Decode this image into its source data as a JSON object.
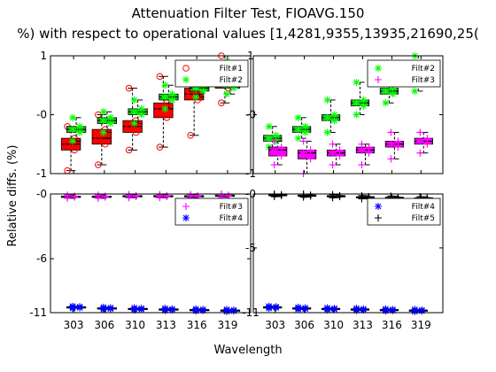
{
  "title_line1": "Attenuation Filter Test, FIOAVG.150",
  "title_line2": "%) with respect to operational values [1,4281,9355,13935,21690,25(",
  "ylabel": "Relative diffs. (%)",
  "xlabel": "Wavelength",
  "colors": {
    "filt1": "#ff0000",
    "filt2": "#00ff00",
    "filt3": "#ff00ff",
    "filt4": "#0000ff",
    "filt5": "#000000",
    "box_green": "#22c322"
  },
  "chart_data": [
    {
      "type": "box",
      "panel": "top-left",
      "categories": [
        "303",
        "306",
        "310",
        "313",
        "316",
        "319"
      ],
      "ylim": [
        -1,
        1
      ],
      "yticks": [
        "-1",
        "-0",
        "1"
      ],
      "legend": {
        "placement": "top-right",
        "entries": [
          "Filt#1",
          "Filt#2"
        ]
      },
      "series": [
        {
          "name": "Filt#1",
          "color": "#ff0000",
          "marker": "circle",
          "median": [
            -0.5,
            -0.4,
            -0.2,
            0.1,
            0.35,
            0.5
          ],
          "q1": [
            -0.6,
            -0.5,
            -0.3,
            -0.05,
            0.25,
            0.45
          ],
          "q3": [
            -0.4,
            -0.25,
            -0.1,
            0.2,
            0.45,
            0.55
          ],
          "low": [
            -0.95,
            -0.85,
            -0.6,
            -0.55,
            -0.35,
            0.2
          ],
          "high": [
            -0.2,
            0.0,
            0.45,
            0.65,
            0.85,
            1.0
          ]
        },
        {
          "name": "Filt#2",
          "color": "#00ff00",
          "marker": "star",
          "median": [
            -0.25,
            -0.1,
            0.05,
            0.3,
            0.45,
            0.5
          ],
          "q1": [
            -0.3,
            -0.15,
            0.0,
            0.25,
            0.4,
            0.45
          ],
          "q3": [
            -0.2,
            -0.05,
            0.1,
            0.35,
            0.5,
            0.55
          ],
          "low": [
            -0.45,
            -0.3,
            -0.15,
            0.1,
            0.3,
            0.35
          ],
          "high": [
            -0.05,
            0.05,
            0.25,
            0.5,
            0.7,
            0.9
          ]
        }
      ]
    },
    {
      "type": "box",
      "panel": "top-right",
      "categories": [
        "303",
        "306",
        "310",
        "313",
        "316",
        "319"
      ],
      "ylim": [
        -1,
        1
      ],
      "yticks": [
        "-1",
        "-0",
        "1"
      ],
      "legend": {
        "placement": "top-right",
        "entries": [
          "Filt#2",
          "Filt#3"
        ]
      },
      "series": [
        {
          "name": "Filt#2",
          "color": "#00ff00",
          "marker": "star",
          "median": [
            -0.4,
            -0.25,
            -0.05,
            0.2,
            0.4,
            0.7
          ],
          "q1": [
            -0.45,
            -0.3,
            -0.1,
            0.15,
            0.35,
            0.65
          ],
          "q3": [
            -0.35,
            -0.2,
            0.0,
            0.25,
            0.45,
            0.75
          ],
          "low": [
            -0.55,
            -0.4,
            -0.3,
            0.0,
            0.2,
            0.4
          ],
          "high": [
            -0.2,
            -0.05,
            0.25,
            0.55,
            0.8,
            1.0
          ]
        },
        {
          "name": "Filt#3",
          "color": "#ff00ff",
          "marker": "plus",
          "median": [
            -0.6,
            -0.65,
            -0.65,
            -0.6,
            -0.5,
            -0.45
          ],
          "q1": [
            -0.7,
            -0.75,
            -0.7,
            -0.65,
            -0.55,
            -0.5
          ],
          "q3": [
            -0.55,
            -0.6,
            -0.6,
            -0.55,
            -0.45,
            -0.4
          ],
          "low": [
            -0.85,
            -1.0,
            -0.85,
            -0.85,
            -0.75,
            -0.65
          ],
          "high": [
            -0.45,
            -0.45,
            -0.5,
            -0.5,
            -0.3,
            -0.3
          ]
        }
      ]
    },
    {
      "type": "box",
      "panel": "bottom-left",
      "categories": [
        "303",
        "306",
        "310",
        "313",
        "316",
        "319"
      ],
      "ylim": [
        -11,
        0
      ],
      "yticks": [
        "-11",
        "-6",
        "-0"
      ],
      "legend": {
        "placement": "top-right",
        "entries": [
          "Filt#3",
          "Filt#4"
        ]
      },
      "series": [
        {
          "name": "Filt#3",
          "color": "#ff00ff",
          "marker": "plus",
          "median": [
            -0.25,
            -0.25,
            -0.2,
            -0.2,
            -0.2,
            -0.15
          ],
          "q1": [
            -0.3,
            -0.3,
            -0.25,
            -0.25,
            -0.25,
            -0.2
          ],
          "q3": [
            -0.2,
            -0.2,
            -0.15,
            -0.15,
            -0.15,
            -0.1
          ],
          "low": [
            -0.4,
            -0.4,
            -0.35,
            -0.35,
            -0.35,
            -0.3
          ],
          "high": [
            -0.1,
            -0.1,
            -0.05,
            -0.05,
            -0.05,
            0.0
          ]
        },
        {
          "name": "Filt#4",
          "color": "#0000ff",
          "marker": "star",
          "median": [
            -10.5,
            -10.6,
            -10.65,
            -10.7,
            -10.75,
            -10.8
          ],
          "q1": [
            -10.55,
            -10.65,
            -10.7,
            -10.75,
            -10.8,
            -10.85
          ],
          "q3": [
            -10.45,
            -10.55,
            -10.6,
            -10.65,
            -10.7,
            -10.75
          ],
          "low": [
            -10.6,
            -10.7,
            -10.75,
            -10.8,
            -10.85,
            -10.9
          ],
          "high": [
            -10.4,
            -10.5,
            -10.55,
            -10.6,
            -10.65,
            -10.7
          ]
        }
      ]
    },
    {
      "type": "box",
      "panel": "bottom-right",
      "categories": [
        "303",
        "306",
        "310",
        "313",
        "316",
        "319"
      ],
      "ylim": [
        -11,
        0
      ],
      "yticks": [
        "-11",
        "-5",
        "-0"
      ],
      "legend": {
        "placement": "top-right",
        "entries": [
          "Filt#4",
          "Filt#5"
        ]
      },
      "series": [
        {
          "name": "Filt#4",
          "color": "#0000ff",
          "marker": "star",
          "median": [
            -10.5,
            -10.6,
            -10.65,
            -10.7,
            -10.75,
            -10.8
          ],
          "q1": [
            -10.55,
            -10.65,
            -10.7,
            -10.75,
            -10.8,
            -10.85
          ],
          "q3": [
            -10.45,
            -10.55,
            -10.6,
            -10.65,
            -10.7,
            -10.75
          ],
          "low": [
            -10.6,
            -10.7,
            -10.75,
            -10.8,
            -10.85,
            -10.9
          ],
          "high": [
            -10.4,
            -10.5,
            -10.55,
            -10.6,
            -10.65,
            -10.7
          ]
        },
        {
          "name": "Filt#5",
          "color": "#000000",
          "marker": "plus",
          "median": [
            -0.1,
            -0.15,
            -0.2,
            -0.3,
            -0.35,
            -0.4
          ],
          "q1": [
            -0.15,
            -0.2,
            -0.25,
            -0.35,
            -0.4,
            -0.45
          ],
          "q3": [
            -0.05,
            -0.1,
            -0.15,
            -0.25,
            -0.3,
            -0.35
          ],
          "low": [
            -0.25,
            -0.3,
            -0.35,
            -0.45,
            -0.5,
            -0.55
          ],
          "high": [
            0.0,
            0.0,
            -0.05,
            -0.15,
            -0.2,
            -0.25
          ]
        }
      ]
    }
  ]
}
